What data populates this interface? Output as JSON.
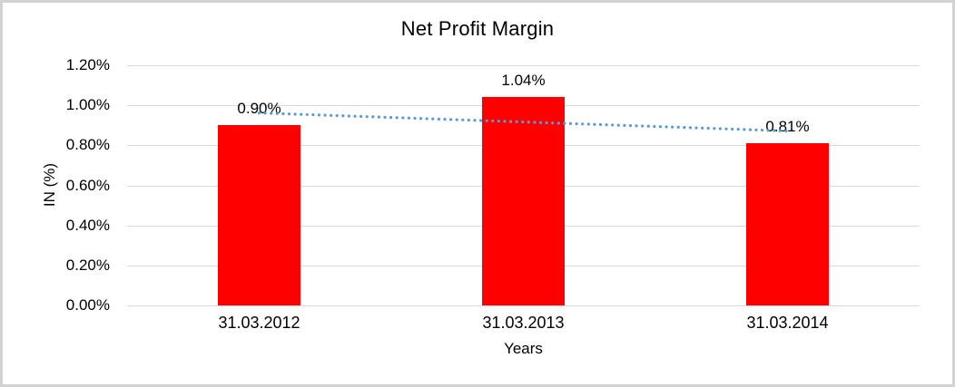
{
  "figure": {
    "background_color": "#ffffff",
    "border_color": "#d2d2d2"
  },
  "chart_data": {
    "type": "bar",
    "title": "Net Profit Margin",
    "xlabel": "Years",
    "ylabel": "IN (%)",
    "categories": [
      "31.03.2012",
      "31.03.2013",
      "31.03.2014"
    ],
    "series": [
      {
        "name": "Net Profit Margin",
        "values": [
          0.9,
          1.04,
          0.81
        ]
      }
    ],
    "data_labels": [
      "0.90%",
      "1.04%",
      "0.81%"
    ],
    "ylim": [
      0,
      1.2
    ],
    "ytick_step": 0.2,
    "ytick_labels": [
      "0.00%",
      "0.20%",
      "0.40%",
      "0.60%",
      "0.80%",
      "1.00%",
      "1.20%"
    ],
    "grid": true,
    "legend": "none",
    "bar_color": "#ff0000",
    "gridline_color": "#d9d9d9",
    "text_color": "#000000",
    "trendline": {
      "type": "linear",
      "style": "dotted",
      "color": "#5b9bd5"
    }
  }
}
